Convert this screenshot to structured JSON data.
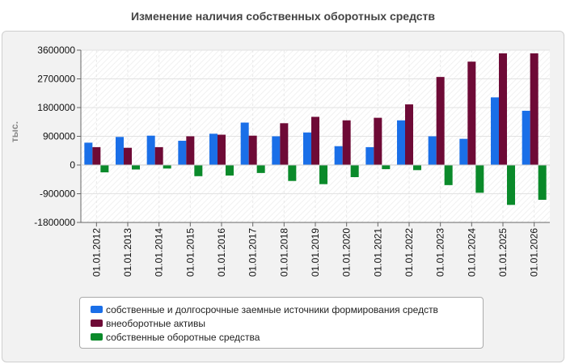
{
  "chart_data": {
    "type": "bar",
    "title": "Изменение наличия собственных оборотных средств",
    "ylabel": "тыс.",
    "xlabel": "",
    "ylim": [
      -1800000,
      3600000
    ],
    "yticks": [
      3600000,
      2700000,
      1800000,
      900000,
      0,
      -900000,
      -1800000
    ],
    "grid": true,
    "legend_position": "bottom",
    "categories": [
      "01.01.2012",
      "01.01.2013",
      "01.01.2014",
      "01.01.2015",
      "01.01.2016",
      "01.01.2017",
      "01.01.2018",
      "01.01.2019",
      "01.01.2020",
      "01.01.2021",
      "01.01.2022",
      "01.01.2023",
      "01.01.2024",
      "01.01.2025",
      "01.01.2026"
    ],
    "series": [
      {
        "name": "собственные и долгосрочные заемные источники формирования средств",
        "color": "#1a6fe8",
        "values": [
          700000,
          880000,
          920000,
          760000,
          980000,
          1330000,
          900000,
          1020000,
          590000,
          560000,
          1400000,
          900000,
          820000,
          2120000,
          1700000
        ]
      },
      {
        "name": "внеоборотные активы",
        "color": "#6e0a36",
        "values": [
          560000,
          540000,
          560000,
          900000,
          950000,
          920000,
          1310000,
          1510000,
          1400000,
          1480000,
          1900000,
          2760000,
          3240000,
          3500000,
          3500000
        ]
      },
      {
        "name": "собственные оборотные средства",
        "color": "#0a8a2a",
        "values": [
          -230000,
          -140000,
          -110000,
          -350000,
          -330000,
          -250000,
          -500000,
          -600000,
          -380000,
          -130000,
          -160000,
          -630000,
          -870000,
          -1250000,
          -1090000
        ]
      }
    ]
  }
}
